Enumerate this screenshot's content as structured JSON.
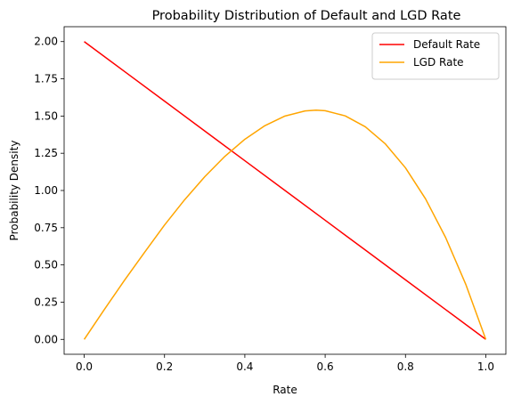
{
  "chart_data": {
    "type": "line",
    "title": "Probability Distribution of Default and LGD Rate",
    "xlabel": "Rate",
    "ylabel": "Probability Density",
    "xlim": [
      -0.05,
      1.05
    ],
    "ylim": [
      -0.1,
      2.1
    ],
    "xticks": [
      0.0,
      0.2,
      0.4,
      0.6,
      0.8,
      1.0
    ],
    "xtick_labels": [
      "0.0",
      "0.2",
      "0.4",
      "0.6",
      "0.8",
      "1.0"
    ],
    "yticks": [
      0.0,
      0.25,
      0.5,
      0.75,
      1.0,
      1.25,
      1.5,
      1.75,
      2.0
    ],
    "ytick_labels": [
      "0.00",
      "0.25",
      "0.50",
      "0.75",
      "1.00",
      "1.25",
      "1.50",
      "1.75",
      "2.00"
    ],
    "grid": false,
    "legend_position": "top-right",
    "series": [
      {
        "name": "Default Rate",
        "color": "#ff0000",
        "x": [
          0.0,
          0.1,
          0.2,
          0.3,
          0.4,
          0.5,
          0.6,
          0.7,
          0.8,
          0.9,
          1.0
        ],
        "y": [
          2.0,
          1.8,
          1.6,
          1.4,
          1.2,
          1.0,
          0.8,
          0.6,
          0.4,
          0.2,
          0.0
        ]
      },
      {
        "name": "LGD Rate",
        "color": "#ffa500",
        "x": [
          0.0,
          0.05,
          0.1,
          0.15,
          0.2,
          0.25,
          0.3,
          0.35,
          0.4,
          0.45,
          0.5,
          0.55,
          0.5774,
          0.6,
          0.65,
          0.7,
          0.75,
          0.8,
          0.85,
          0.9,
          0.95,
          1.0
        ],
        "y": [
          0.0,
          0.2001,
          0.396,
          0.5831,
          0.768,
          0.9375,
          1.092,
          1.2285,
          1.344,
          1.4355,
          1.5,
          1.5341,
          1.5396,
          1.536,
          1.5011,
          1.428,
          1.3125,
          1.152,
          0.9435,
          0.684,
          0.3705,
          0.0
        ]
      }
    ]
  }
}
